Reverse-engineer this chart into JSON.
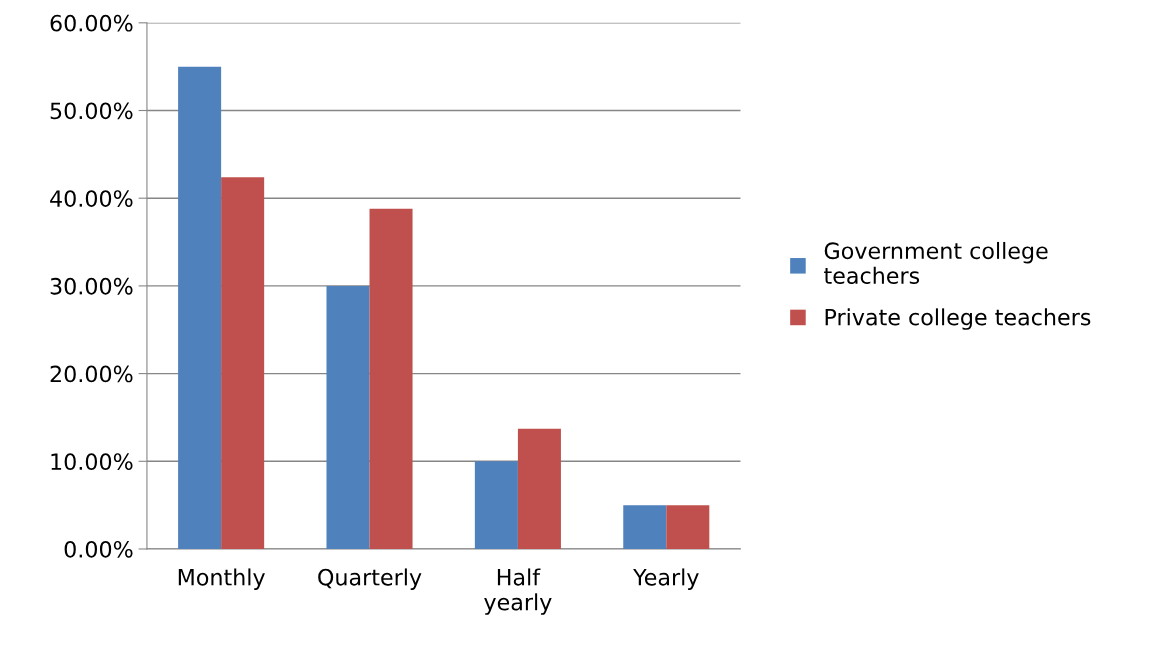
{
  "chart_data": {
    "type": "bar",
    "categories": [
      "Monthly",
      "Quarterly",
      "Half\nyearly",
      "Yearly"
    ],
    "series": [
      {
        "name": "Government college\nteachers",
        "color": "#4f81bd",
        "values": [
          55,
          30,
          10,
          5
        ]
      },
      {
        "name": "Private college teachers",
        "color": "#c0504d",
        "values": [
          42.4,
          38.8,
          13.7,
          5
        ]
      }
    ],
    "ylim": [
      0,
      60
    ],
    "yticks": [
      {
        "value": 0,
        "label": "0.00%"
      },
      {
        "value": 10,
        "label": "10.00%"
      },
      {
        "value": 20,
        "label": "20.00%"
      },
      {
        "value": 30,
        "label": "30.00%"
      },
      {
        "value": 40,
        "label": "40.00%"
      },
      {
        "value": 50,
        "label": "50.00%"
      },
      {
        "value": 60,
        "label": "60.00%"
      }
    ],
    "grid": "y",
    "legend": "right"
  }
}
